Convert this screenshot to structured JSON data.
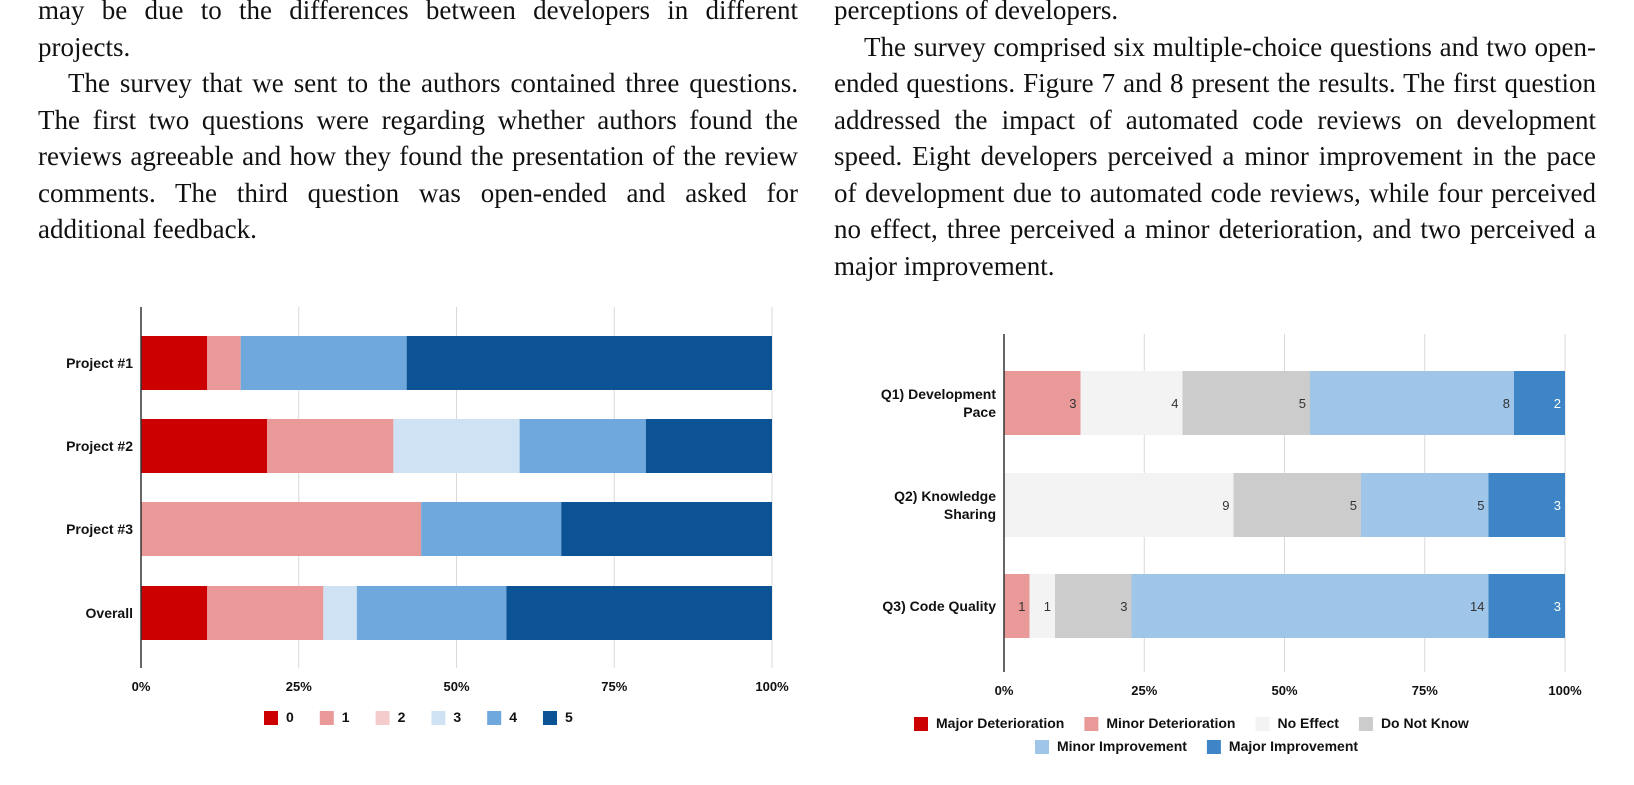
{
  "text": {
    "left_column": [
      "may be due to the differences between developers in different projects.",
      "The survey that we sent to the authors contained three questions. The first two questions were regarding whether authors found the reviews agreeable and how they found the presentation of the review comments. The third question was open-ended and asked for additional feedback."
    ],
    "right_column": [
      "perceptions of developers.",
      "The survey comprised six multiple-choice questions and two open-ended questions. Figure 7 and 8 present the results. The first question addressed the impact of automated code reviews on development speed. Eight developers perceived a minor improvement in the pace of development due to automated code reviews, while four perceived no effect, three perceived a minor deterioration, and two perceived a major improvement."
    ]
  },
  "chart_data": [
    {
      "type": "bar",
      "orientation": "horizontal",
      "stacked": true,
      "normalized": true,
      "categories": [
        "Project #1",
        "Project #2",
        "Project #3",
        "Overall"
      ],
      "series": [
        {
          "name": "0",
          "color": "#cc0000",
          "values": [
            10.5,
            20,
            0,
            10.5
          ]
        },
        {
          "name": "1",
          "color": "#ea9999",
          "values": [
            5.3,
            20,
            44.4,
            18.4
          ]
        },
        {
          "name": "2",
          "color": "#f4cccc",
          "values": [
            0,
            0,
            0,
            0
          ]
        },
        {
          "name": "3",
          "color": "#cfe2f3",
          "values": [
            0,
            20,
            0,
            5.3
          ]
        },
        {
          "name": "4",
          "color": "#6fa8dc",
          "values": [
            26.3,
            20,
            22.2,
            23.7
          ]
        },
        {
          "name": "5",
          "color": "#0b5394",
          "values": [
            57.9,
            20,
            33.4,
            42.1
          ]
        }
      ],
      "x_ticks": [
        "0%",
        "25%",
        "50%",
        "75%",
        "100%"
      ],
      "xlim": [
        0,
        100
      ],
      "grid": true,
      "legend": "bottom"
    },
    {
      "type": "bar",
      "orientation": "horizontal",
      "stacked": true,
      "normalized": true,
      "categories": [
        "Q1) Development Pace",
        "Q2) Knowledge Sharing",
        "Q3) Code Quality"
      ],
      "category_lines": [
        [
          "Q1) Development",
          "Pace"
        ],
        [
          "Q2) Knowledge",
          "Sharing"
        ],
        [
          "Q3) Code Quality"
        ]
      ],
      "series": [
        {
          "name": "Major Deterioration",
          "color": "#cc0000",
          "values": [
            0,
            0,
            0
          ]
        },
        {
          "name": "Minor Deterioration",
          "color": "#ea9999",
          "values": [
            3,
            0,
            1
          ]
        },
        {
          "name": "No Effect",
          "color": "#f3f3f3",
          "values": [
            4,
            9,
            1
          ]
        },
        {
          "name": "Do Not Know",
          "color": "#cccccc",
          "values": [
            5,
            5,
            3
          ]
        },
        {
          "name": "Minor Improvement",
          "color": "#9fc5e8",
          "values": [
            8,
            5,
            14
          ]
        },
        {
          "name": "Major Improvement",
          "color": "#3d85c6",
          "values": [
            2,
            3,
            3
          ]
        }
      ],
      "x_ticks": [
        "0%",
        "25%",
        "50%",
        "75%",
        "100%"
      ],
      "xlim": [
        0,
        100
      ],
      "grid": true,
      "data_labels": true,
      "legend": "bottom"
    }
  ]
}
